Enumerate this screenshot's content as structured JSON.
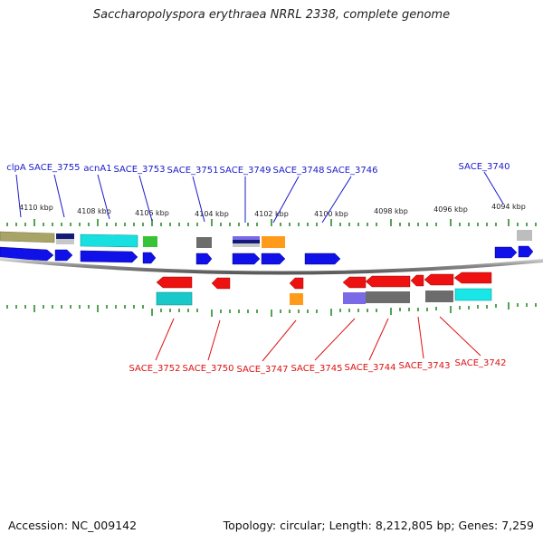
{
  "title": "Saccharopolyspora erythraea NRRL 2338, complete genome",
  "footer": {
    "accession": "Accession: NC_009142",
    "stats": "Topology: circular; Length: 8,212,805 bp; Genes: 7,259"
  },
  "colors": {
    "forward_label": "#1a1acc",
    "reverse_label": "#dd1111",
    "tick": "#2a8a2a",
    "backbone": "#8c8c8c"
  },
  "ruler": {
    "unit": "kbp",
    "labels": [
      "4110 kbp",
      "4108 kbp",
      "4106 kbp",
      "4104 kbp",
      "4102 kbp",
      "4100 kbp",
      "4098 kbp",
      "4096 kbp",
      "4094 kbp"
    ]
  },
  "forward_labels": [
    "clpA",
    "SACE_3755",
    "acnA1",
    "SACE_3753",
    "SACE_3751",
    "SACE_3749",
    "SACE_3748",
    "SACE_3746",
    "SACE_3740"
  ],
  "reverse_labels": [
    "SACE_3752",
    "SACE_3750",
    "SACE_3747",
    "SACE_3745",
    "SACE_3744",
    "SACE_3743",
    "SACE_3742"
  ]
}
